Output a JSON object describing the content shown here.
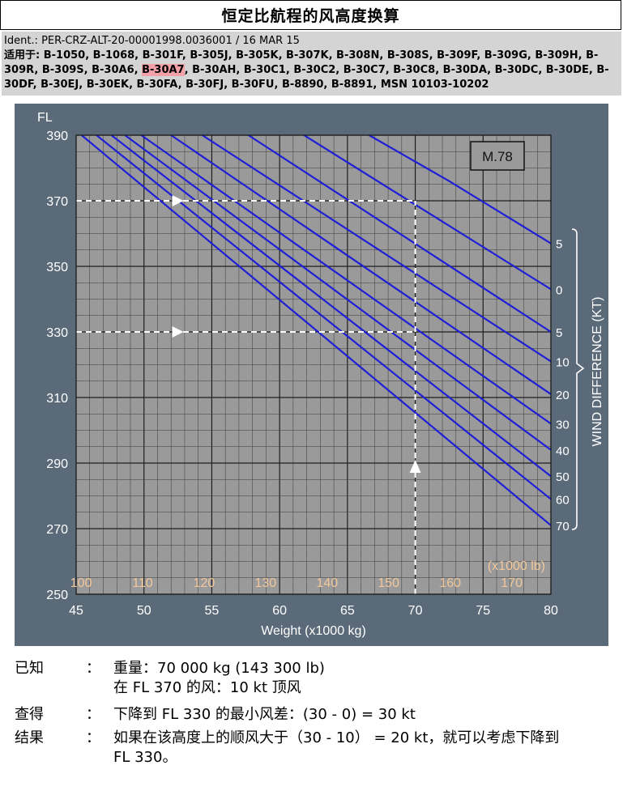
{
  "header": {
    "title": "恒定比航程的风高度换算"
  },
  "ident": {
    "line": "Ident.: PER-CRZ-ALT-20-00001998.0036001 / 16 MAR 15",
    "applicable_prefix": "适用于: ",
    "applicable_pre": "B-1050, B-1068, B-301F, B-305J, B-305K, B-307K, B-308N, B-308S, B-309F, B-309G, B-309H, B-309R, B-309S, B-30A6, ",
    "applicable_highlight": "B-30A7",
    "applicable_post": ", B-30AH, B-30C1, B-30C2, B-30C7, B-30C8, B-30DA, B-30DC, B-30DE, B-30DF, B-30EJ, B-30EK, B-30FA, B-30FJ, B-30FU, B-8890, B-8891, MSN 10103-10202"
  },
  "chart_data": {
    "type": "line",
    "mach_label": "M.78",
    "ylabel": "FL",
    "xlabel": "Weight (x1000 kg)",
    "secondary_xlabel": "(x1000 lb)",
    "right_label": "WIND DIFFERENCE (KT)",
    "xlim": [
      45,
      80
    ],
    "ylim": [
      250,
      390
    ],
    "x_ticks": [
      45,
      50,
      55,
      60,
      65,
      70,
      75,
      80
    ],
    "y_ticks": [
      250,
      270,
      290,
      310,
      330,
      350,
      370,
      390
    ],
    "lb_ticks": [
      100,
      110,
      120,
      130,
      140,
      150,
      160,
      170
    ],
    "grid": true,
    "series": [
      {
        "name": "5",
        "x": [
          66.6,
          72.5,
          80
        ],
        "y": [
          390,
          376,
          357
        ]
      },
      {
        "name": "0",
        "x": [
          61.8,
          80
        ],
        "y": [
          390,
          343
        ]
      },
      {
        "name": "5",
        "x": [
          57.7,
          80
        ],
        "y": [
          390,
          330
        ]
      },
      {
        "name": "10",
        "x": [
          54.3,
          80
        ],
        "y": [
          390,
          321
        ]
      },
      {
        "name": "20",
        "x": [
          52.0,
          80
        ],
        "y": [
          390,
          311
        ]
      },
      {
        "name": "30",
        "x": [
          49.8,
          80
        ],
        "y": [
          390,
          302
        ]
      },
      {
        "name": "40",
        "x": [
          48.6,
          80
        ],
        "y": [
          390,
          294
        ]
      },
      {
        "name": "50",
        "x": [
          47.6,
          80
        ],
        "y": [
          390,
          286
        ]
      },
      {
        "name": "60",
        "x": [
          46.5,
          80
        ],
        "y": [
          390,
          279
        ]
      },
      {
        "name": "70",
        "x": [
          45.4,
          80
        ],
        "y": [
          390,
          271
        ]
      }
    ],
    "annotation": {
      "weight": 70,
      "fl_initial": 370,
      "fl_descend": 330,
      "vertical_from": 250
    }
  },
  "footer": {
    "given_label": "已知",
    "given_line1": "重量：70 000 kg (143 300 lb)",
    "given_line2": "在 FL 370 的风：10 kt 顶风",
    "find_label": "查得",
    "find_value": "下降到 FL 330 的最小风差：(30 - 0) = 30 kt",
    "result_label": "结果",
    "result_line1": "如果在该高度上的顺风大于（30 - 10） = 20 kt，就可以考虑下降到",
    "result_line2": "FL 330。",
    "colon": "："
  },
  "colors": {
    "plot_bg": "#9a9a9a",
    "frame_bg": "#5a6a79",
    "curve": "#1f1fd6",
    "lb_label": "#f2c79a",
    "highlight": "#f4a0a8"
  }
}
